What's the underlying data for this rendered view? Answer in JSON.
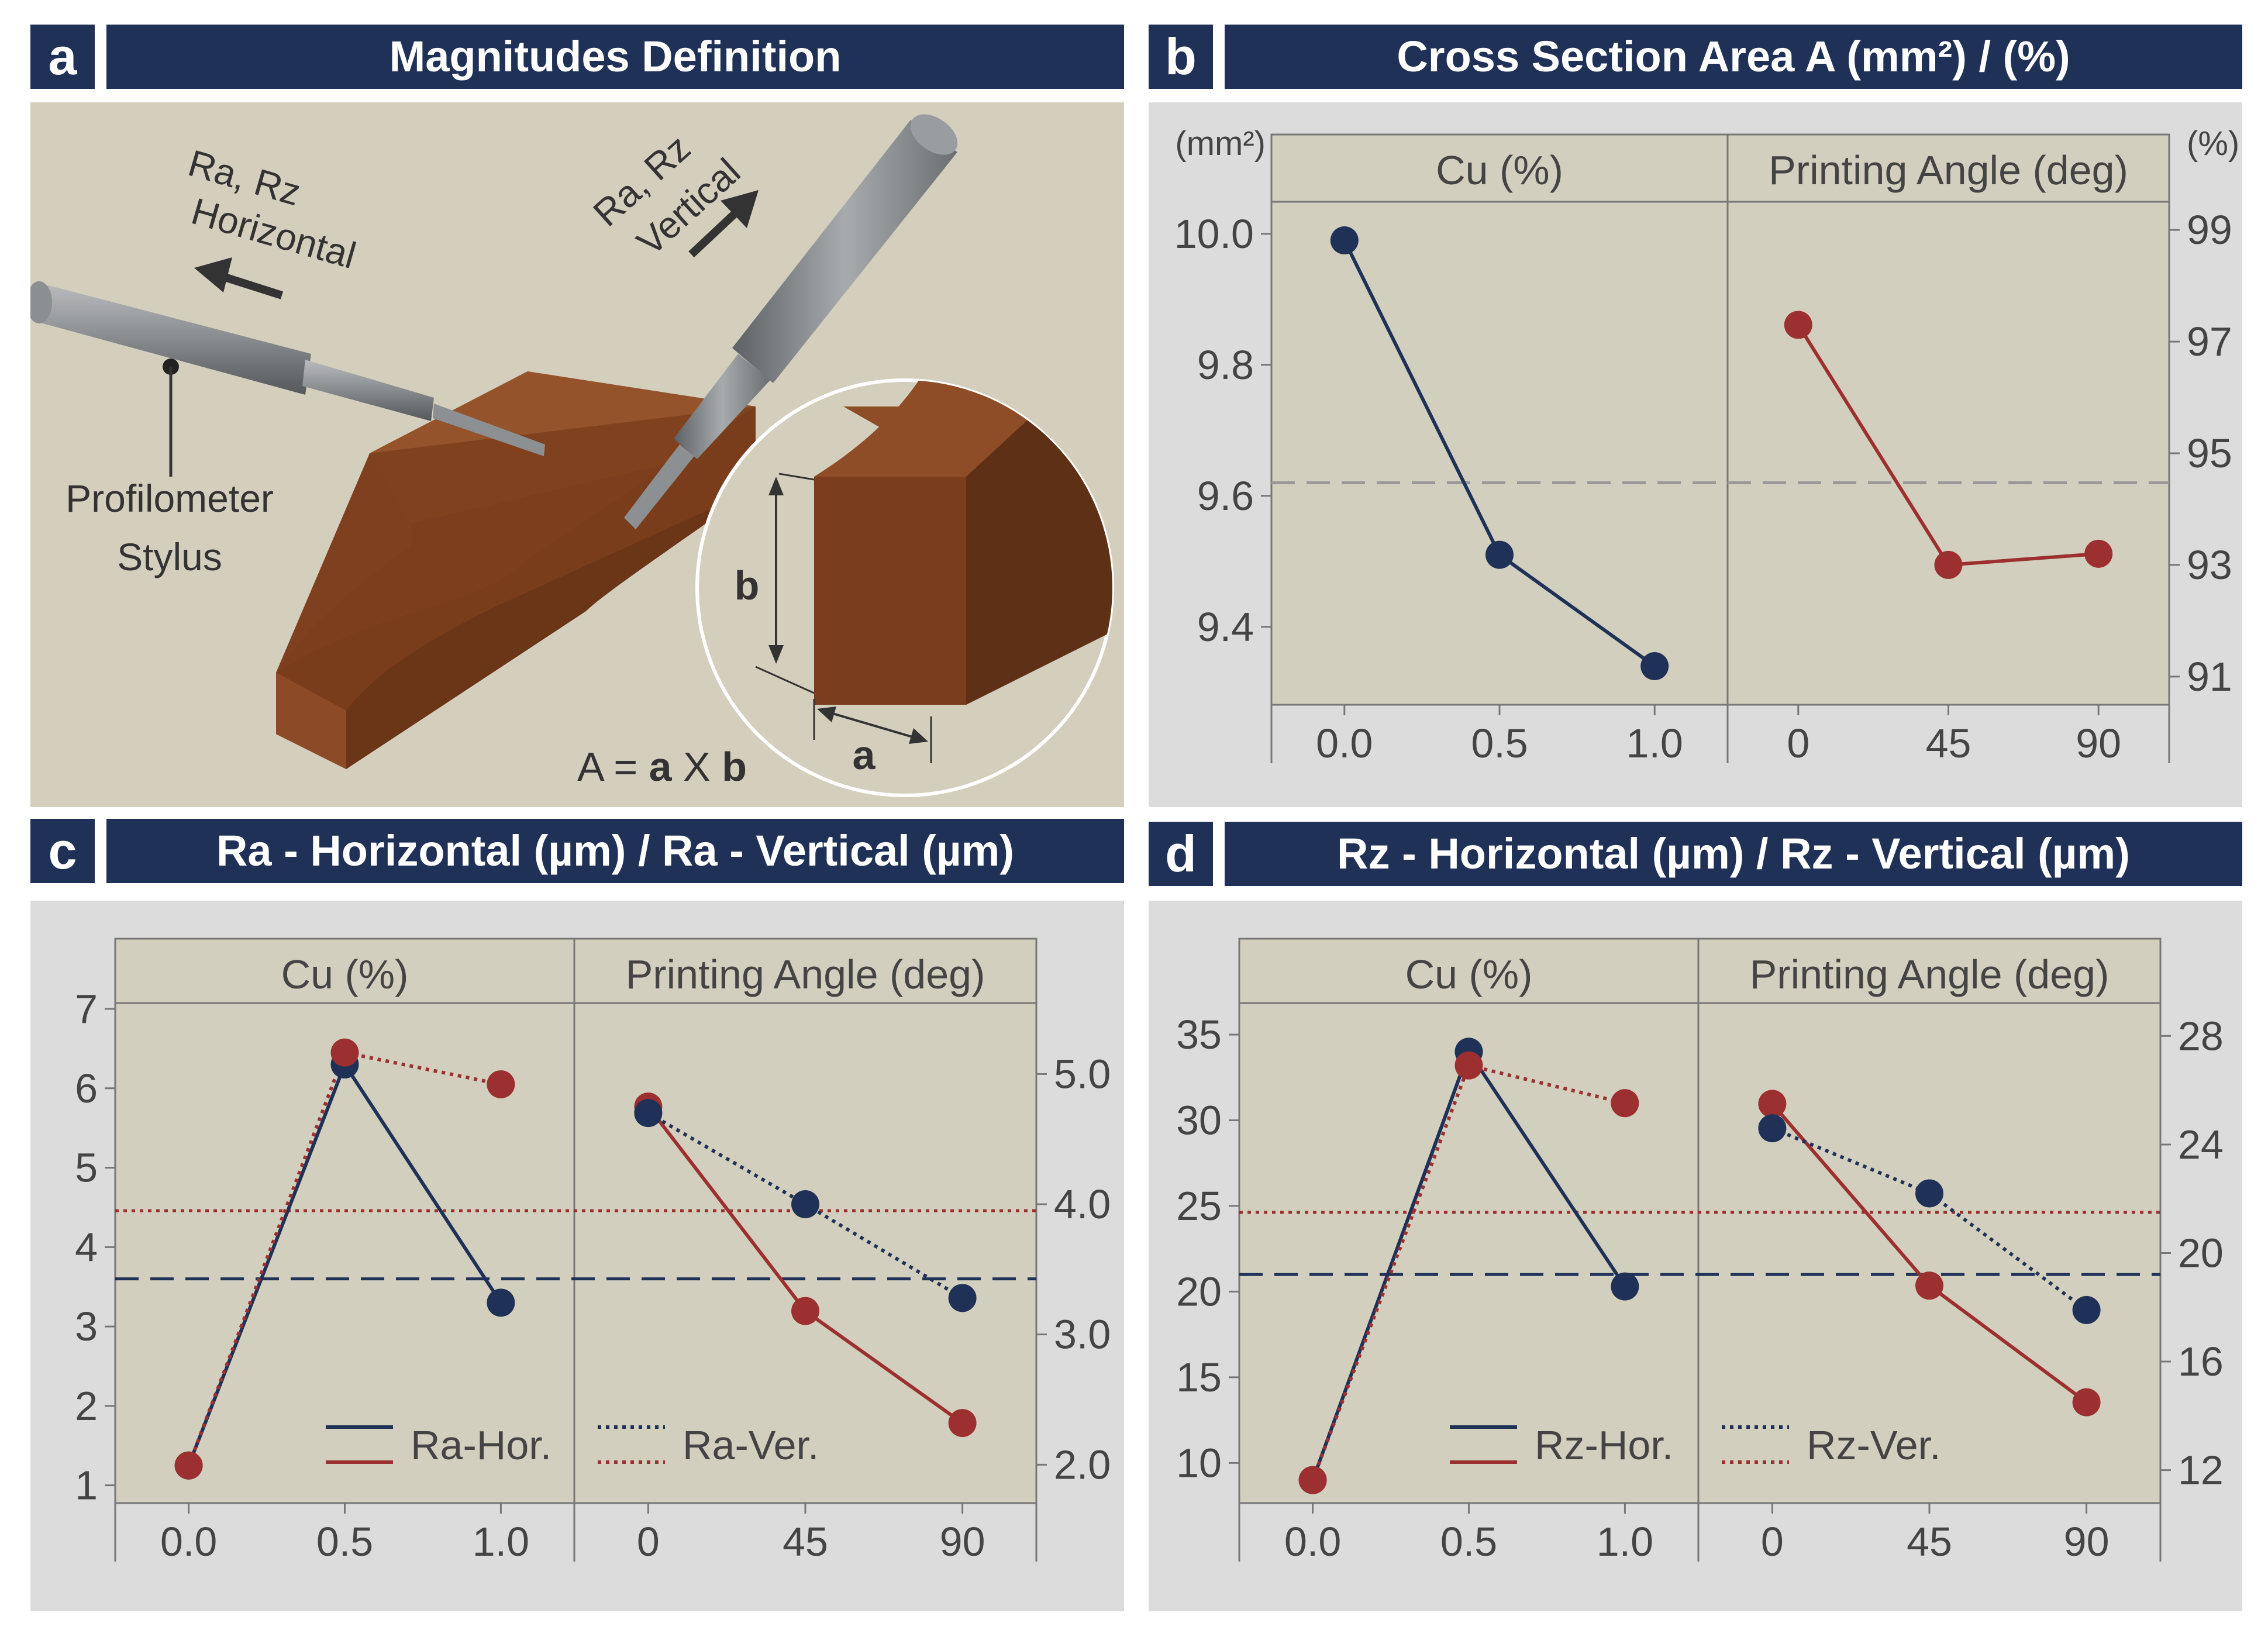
{
  "panels": {
    "a": {
      "letter": "a",
      "title": "Magnitudes Definition"
    },
    "b": {
      "letter": "b",
      "title": "Cross Section Area A (mm²) / (%)"
    },
    "c": {
      "letter": "c",
      "title": "Ra - Horizontal (µm) / Ra - Vertical (µm)"
    },
    "d": {
      "letter": "d",
      "title": "Rz - Horizontal (µm) / Rz - Vertical (µm)"
    }
  },
  "illustration": {
    "label_horizontal_1": "Ra, Rz",
    "label_horizontal_2": "Horizontal",
    "label_vertical_1": "Ra, Rz",
    "label_vertical_2": "Vertical",
    "stylus_1": "Profilometer",
    "stylus_2": "Stylus",
    "dim_a": "a",
    "dim_b": "b",
    "formula_pre": "A = ",
    "formula_a": "a",
    "formula_x": " X ",
    "formula_b": "b"
  },
  "colors": {
    "navy": "#1f3157",
    "red": "#9c3030",
    "plot_bg": "#d3cfbe",
    "panel_bg": "#dcdcdc",
    "copper": "#8b4a26"
  },
  "chart_data": [
    {
      "id": "b",
      "type": "line",
      "title": "Cross Section Area A (mm²) / (%)",
      "facets": [
        {
          "name": "Cu (%)",
          "categories": [
            "0.0",
            "0.5",
            "1.0"
          ]
        },
        {
          "name": "Printing Angle (deg)",
          "categories": [
            "0",
            "45",
            "90"
          ]
        }
      ],
      "left_axis": {
        "label": "(mm²)",
        "range": [
          9.29,
          10.04
        ],
        "ticks": [
          "9.4",
          "9.6",
          "9.8",
          "10.0"
        ]
      },
      "right_axis": {
        "label": "(%)",
        "range": [
          90.6,
          99.4
        ],
        "ticks": [
          "91",
          "93",
          "95",
          "97",
          "99"
        ]
      },
      "series": [
        {
          "facet": 0,
          "axis": "left",
          "color": "#1f3157",
          "style": "solid",
          "values": [
            9.99,
            9.51,
            9.34
          ]
        },
        {
          "facet": 1,
          "axis": "right",
          "color": "#9c3030",
          "style": "solid",
          "values": [
            97.3,
            93.0,
            93.2
          ]
        }
      ],
      "reference_lines": [
        {
          "axis": "left",
          "value": 9.62,
          "color": "#999999",
          "style": "dashed"
        }
      ]
    },
    {
      "id": "c",
      "type": "line",
      "title": "Ra - Horizontal (µm) / Ra - Vertical (µm)",
      "facets": [
        {
          "name": "Cu (%)",
          "categories": [
            "0.0",
            "0.5",
            "1.0"
          ]
        },
        {
          "name": "Printing Angle (deg)",
          "categories": [
            "0",
            "45",
            "90"
          ]
        }
      ],
      "left_axis": {
        "label": "",
        "range": [
          0.85,
          7.0
        ],
        "ticks": [
          "1",
          "2",
          "3",
          "4",
          "5",
          "6",
          "7"
        ]
      },
      "right_axis": {
        "label": "",
        "range": [
          1.75,
          5.5
        ],
        "ticks": [
          "2.0",
          "3.0",
          "4.0",
          "5.0"
        ]
      },
      "series": [
        {
          "facet": 0,
          "axis": "left",
          "color": "#1f3157",
          "style": "solid",
          "values": [
            1.25,
            6.3,
            3.3
          ]
        },
        {
          "facet": 0,
          "axis": "left",
          "color": "#9c3030",
          "style": "dotted",
          "values": [
            1.25,
            6.45,
            6.05
          ]
        },
        {
          "facet": 1,
          "axis": "right",
          "color": "#9c3030",
          "style": "solid",
          "values": [
            4.75,
            3.18,
            2.32
          ]
        },
        {
          "facet": 1,
          "axis": "right",
          "color": "#1f3157",
          "style": "dotted",
          "values": [
            4.7,
            4.0,
            3.28
          ]
        }
      ],
      "reference_lines": [
        {
          "axis": "left",
          "value": 3.6,
          "color": "#1f3157",
          "style": "dashed"
        },
        {
          "axis": "right",
          "value": 3.95,
          "color": "#9c3030",
          "style": "dotted"
        }
      ],
      "legend": {
        "items": [
          "Ra-Hor.",
          "Ra-Ver."
        ],
        "placement": "bottom"
      }
    },
    {
      "id": "d",
      "type": "line",
      "title": "Rz - Horizontal (µm) / Rz - Vertical (µm)",
      "facets": [
        {
          "name": "Cu (%)",
          "categories": [
            "0.0",
            "0.5",
            "1.0"
          ]
        },
        {
          "name": "Printing Angle (deg)",
          "categories": [
            "0",
            "45",
            "90"
          ]
        }
      ],
      "left_axis": {
        "label": "",
        "range": [
          8.0,
          36.5
        ],
        "ticks": [
          "10",
          "15",
          "20",
          "25",
          "30",
          "35"
        ]
      },
      "right_axis": {
        "label": "",
        "range": [
          11.0,
          29.0
        ],
        "ticks": [
          "12",
          "16",
          "20",
          "24",
          "28"
        ]
      },
      "series": [
        {
          "facet": 0,
          "axis": "left",
          "color": "#1f3157",
          "style": "solid",
          "values": [
            9.0,
            34.0,
            20.3
          ]
        },
        {
          "facet": 0,
          "axis": "left",
          "color": "#9c3030",
          "style": "dotted",
          "values": [
            9.0,
            33.2,
            31.0
          ]
        },
        {
          "facet": 1,
          "axis": "right",
          "color": "#9c3030",
          "style": "solid",
          "values": [
            25.5,
            18.8,
            14.5
          ]
        },
        {
          "facet": 1,
          "axis": "right",
          "color": "#1f3157",
          "style": "dotted",
          "values": [
            24.6,
            22.2,
            17.9
          ]
        }
      ],
      "reference_lines": [
        {
          "axis": "left",
          "value": 21.0,
          "color": "#1f3157",
          "style": "dashed"
        },
        {
          "axis": "right",
          "value": 21.5,
          "color": "#9c3030",
          "style": "dotted"
        }
      ],
      "legend": {
        "items": [
          "Rz-Hor.",
          "Rz-Ver."
        ],
        "placement": "bottom"
      }
    }
  ]
}
